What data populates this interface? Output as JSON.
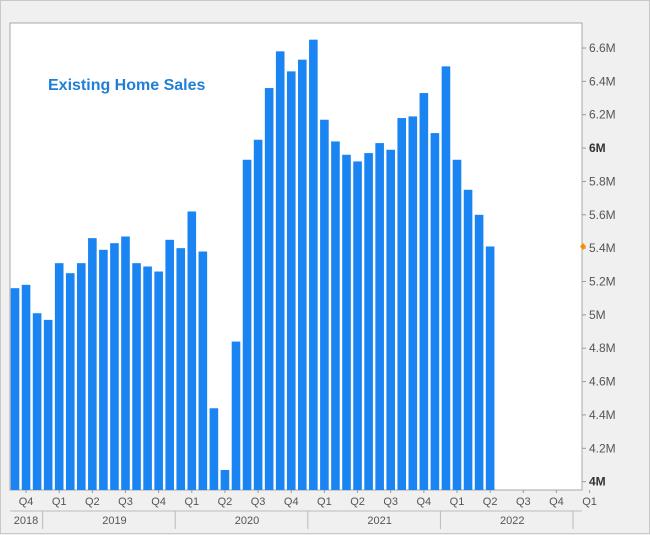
{
  "chart_data": {
    "type": "bar",
    "title": "Existing Home Sales",
    "bar_color": "#1a84f2",
    "title_color": "#1f7fd6",
    "marker_color": "#ff8c00",
    "last_value_marker": 5.41,
    "ylim": [
      3.95,
      6.75
    ],
    "y_ticks": [
      {
        "value": 4.0,
        "label": "4M",
        "bold": true
      },
      {
        "value": 4.2,
        "label": "4.2M"
      },
      {
        "value": 4.4,
        "label": "4.4M"
      },
      {
        "value": 4.6,
        "label": "4.6M"
      },
      {
        "value": 4.8,
        "label": "4.8M"
      },
      {
        "value": 5.0,
        "label": "5M"
      },
      {
        "value": 5.2,
        "label": "5.2M"
      },
      {
        "value": 5.4,
        "label": "5.4M"
      },
      {
        "value": 5.6,
        "label": "5.6M"
      },
      {
        "value": 5.8,
        "label": "5.8M"
      },
      {
        "value": 6.0,
        "label": "6M",
        "bold": true
      },
      {
        "value": 6.2,
        "label": "6.2M"
      },
      {
        "value": 6.4,
        "label": "6.4M"
      },
      {
        "value": 6.6,
        "label": "6.6M"
      }
    ],
    "x": [
      "2018-10",
      "2018-11",
      "2018-12",
      "2019-01",
      "2019-02",
      "2019-03",
      "2019-04",
      "2019-05",
      "2019-06",
      "2019-07",
      "2019-08",
      "2019-09",
      "2019-10",
      "2019-11",
      "2019-12",
      "2020-01",
      "2020-02",
      "2020-03",
      "2020-04",
      "2020-05",
      "2020-06",
      "2020-07",
      "2020-08",
      "2020-09",
      "2020-10",
      "2020-11",
      "2020-12",
      "2021-01",
      "2021-02",
      "2021-03",
      "2021-04",
      "2021-05",
      "2021-06",
      "2021-07",
      "2021-08",
      "2021-09",
      "2021-10",
      "2021-11",
      "2021-12",
      "2022-01",
      "2022-02",
      "2022-03",
      "2022-04",
      "2022-05"
    ],
    "values": [
      5.16,
      5.18,
      5.01,
      4.97,
      5.31,
      5.25,
      5.31,
      5.46,
      5.39,
      5.43,
      5.47,
      5.31,
      5.29,
      5.26,
      5.45,
      5.4,
      5.62,
      5.38,
      4.44,
      4.07,
      4.84,
      5.93,
      6.05,
      6.36,
      6.58,
      6.46,
      6.53,
      6.65,
      6.17,
      6.04,
      5.96,
      5.92,
      5.97,
      6.03,
      5.99,
      6.18,
      6.19,
      6.33,
      6.09,
      6.49,
      5.93,
      5.75,
      5.6,
      5.41
    ],
    "quarter_ticks": [
      {
        "x": "2018-11",
        "label": "Q4"
      },
      {
        "x": "2019-02",
        "label": "Q1"
      },
      {
        "x": "2019-05",
        "label": "Q2"
      },
      {
        "x": "2019-08",
        "label": "Q3"
      },
      {
        "x": "2019-11",
        "label": "Q4"
      },
      {
        "x": "2020-02",
        "label": "Q1"
      },
      {
        "x": "2020-05",
        "label": "Q2"
      },
      {
        "x": "2020-08",
        "label": "Q3"
      },
      {
        "x": "2020-11",
        "label": "Q4"
      },
      {
        "x": "2021-02",
        "label": "Q1"
      },
      {
        "x": "2021-05",
        "label": "Q2"
      },
      {
        "x": "2021-08",
        "label": "Q3"
      },
      {
        "x": "2021-11",
        "label": "Q4"
      },
      {
        "x": "2022-02",
        "label": "Q1"
      },
      {
        "x": "2022-05",
        "label": "Q2"
      },
      {
        "x": "2022-08",
        "label": "Q3"
      },
      {
        "x": "2022-11",
        "label": "Q4"
      },
      {
        "x": "2023-02",
        "label": "Q1"
      }
    ],
    "year_labels": [
      {
        "x": "2018-11",
        "label": "2018"
      },
      {
        "x": "2019-07",
        "label": "2019"
      },
      {
        "x": "2020-07",
        "label": "2020"
      },
      {
        "x": "2021-07",
        "label": "2021"
      },
      {
        "x": "2022-07",
        "label": "2022"
      }
    ],
    "year_dividers": [
      "2019-01",
      "2020-01",
      "2021-01",
      "2022-01",
      "2023-01"
    ]
  }
}
